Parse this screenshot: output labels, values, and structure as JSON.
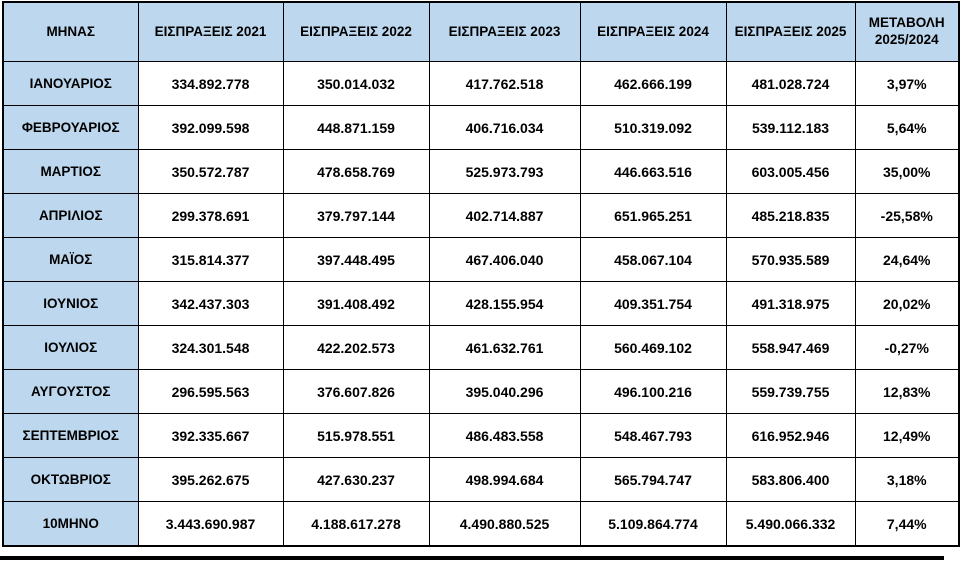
{
  "colors": {
    "header_bg": "#BDD7EE",
    "month_col_bg": "#BDD7EE",
    "cell_bg": "#FFFFFF",
    "border": "#000000",
    "text": "#000000"
  },
  "table": {
    "columns": [
      "ΜΗΝΑΣ",
      "ΕΙΣΠΡΑΞΕΙΣ 2021",
      "ΕΙΣΠΡΑΞΕΙΣ 2022",
      "ΕΙΣΠΡΑΞΕΙΣ 2023",
      "ΕΙΣΠΡΑΞΕΙΣ 2024",
      "ΕΙΣΠΡΑΞΕΙΣ 2025",
      "ΜΕΤΑΒΟΛΗ 2025/2024"
    ],
    "rows": [
      {
        "month": "ΙΑΝΟΥΑΡΙΟΣ",
        "values": [
          "334.892.778",
          "350.014.032",
          "417.762.518",
          "462.666.199",
          "481.028.724"
        ],
        "change": "3,97%"
      },
      {
        "month": "ΦΕΒΡΟΥΑΡΙΟΣ",
        "values": [
          "392.099.598",
          "448.871.159",
          "406.716.034",
          "510.319.092",
          "539.112.183"
        ],
        "change": "5,64%"
      },
      {
        "month": "ΜΑΡΤΙΟΣ",
        "values": [
          "350.572.787",
          "478.658.769",
          "525.973.793",
          "446.663.516",
          "603.005.456"
        ],
        "change": "35,00%"
      },
      {
        "month": "ΑΠΡΙΛΙΟΣ",
        "values": [
          "299.378.691",
          "379.797.144",
          "402.714.887",
          "651.965.251",
          "485.218.835"
        ],
        "change": "-25,58%"
      },
      {
        "month": "ΜΑΪΟΣ",
        "values": [
          "315.814.377",
          "397.448.495",
          "467.406.040",
          "458.067.104",
          "570.935.589"
        ],
        "change": "24,64%"
      },
      {
        "month": "ΙΟΥΝΙΟΣ",
        "values": [
          "342.437.303",
          "391.408.492",
          "428.155.954",
          "409.351.754",
          "491.318.975"
        ],
        "change": "20,02%"
      },
      {
        "month": "ΙΟΥΛΙΟΣ",
        "values": [
          "324.301.548",
          "422.202.573",
          "461.632.761",
          "560.469.102",
          "558.947.469"
        ],
        "change": "-0,27%"
      },
      {
        "month": "ΑΥΓΟΥΣΤΟΣ",
        "values": [
          "296.595.563",
          "376.607.826",
          "395.040.296",
          "496.100.216",
          "559.739.755"
        ],
        "change": "12,83%"
      },
      {
        "month": "ΣΕΠΤΕΜΒΡΙΟΣ",
        "values": [
          "392.335.667",
          "515.978.551",
          "486.483.558",
          "548.467.793",
          "616.952.946"
        ],
        "change": "12,49%"
      },
      {
        "month": "ΟΚΤΩΒΡΙΟΣ",
        "values": [
          "395.262.675",
          "427.630.237",
          "498.994.684",
          "565.794.747",
          "583.806.400"
        ],
        "change": "3,18%"
      },
      {
        "month": "10ΜΗΝΟ",
        "values": [
          "3.443.690.987",
          "4.188.617.278",
          "4.490.880.525",
          "5.109.864.774",
          "5.490.066.332"
        ],
        "change": "7,44%"
      }
    ]
  },
  "chart_data": {
    "type": "table",
    "title": "",
    "categories": [
      "ΙΑΝΟΥΑΡΙΟΣ",
      "ΦΕΒΡΟΥΑΡΙΟΣ",
      "ΜΑΡΤΙΟΣ",
      "ΑΠΡΙΛΙΟΣ",
      "ΜΑΪΟΣ",
      "ΙΟΥΝΙΟΣ",
      "ΙΟΥΛΙΟΣ",
      "ΑΥΓΟΥΣΤΟΣ",
      "ΣΕΠΤΕΜΒΡΙΟΣ",
      "ΟΚΤΩΒΡΙΟΣ",
      "10ΜΗΝΟ"
    ],
    "series": [
      {
        "name": "ΕΙΣΠΡΑΞΕΙΣ 2021",
        "values": [
          334892778,
          392099598,
          350572787,
          299378691,
          315814377,
          342437303,
          324301548,
          296595563,
          392335667,
          395262675,
          3443690987
        ]
      },
      {
        "name": "ΕΙΣΠΡΑΞΕΙΣ 2022",
        "values": [
          350014032,
          448871159,
          478658769,
          379797144,
          397448495,
          391408492,
          422202573,
          376607826,
          515978551,
          427630237,
          4188617278
        ]
      },
      {
        "name": "ΕΙΣΠΡΑΞΕΙΣ 2023",
        "values": [
          417762518,
          406716034,
          525973793,
          402714887,
          467406040,
          428155954,
          461632761,
          395040296,
          486483558,
          498994684,
          4490880525
        ]
      },
      {
        "name": "ΕΙΣΠΡΑΞΕΙΣ 2024",
        "values": [
          462666199,
          510319092,
          446663516,
          651965251,
          458067104,
          409351754,
          560469102,
          496100216,
          548467793,
          565794747,
          5109864774
        ]
      },
      {
        "name": "ΕΙΣΠΡΑΞΕΙΣ 2025",
        "values": [
          481028724,
          539112183,
          603005456,
          485218835,
          570935589,
          491318975,
          558947469,
          559739755,
          616952946,
          583806400,
          5490066332
        ]
      },
      {
        "name": "ΜΕΤΑΒΟΛΗ 2025/2024 (%)",
        "values": [
          3.97,
          5.64,
          35.0,
          -25.58,
          24.64,
          20.02,
          -0.27,
          12.83,
          12.49,
          3.18,
          7.44
        ]
      }
    ]
  }
}
